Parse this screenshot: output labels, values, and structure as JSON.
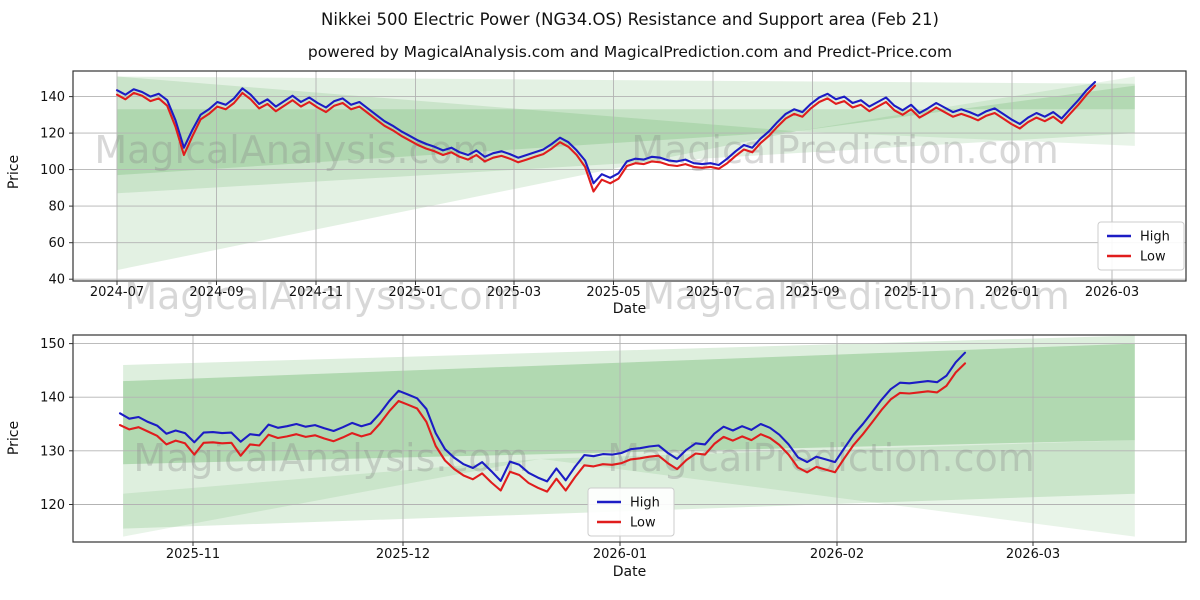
{
  "title": "Nikkei 500 Electric Power (NG34.OS) Resistance and Support area (Feb 21)",
  "subtitle": "powered by MagicalAnalysis.com and MagicalPrediction.com and Predict-Price.com",
  "watermark_row": [
    "MagicalAnalysis.com",
    "MagicalPrediction.com"
  ],
  "colors": {
    "high": "#1c1cc4",
    "low": "#e01d1d",
    "band_green": "#008000",
    "grid": "#b3b3b3",
    "spine": "#333333"
  },
  "chart_data": [
    {
      "type": "line",
      "panel": "top",
      "xlabel": "Date",
      "ylabel": "Price",
      "x_tick_labels": [
        "2024-07",
        "2024-09",
        "2024-11",
        "2025-01",
        "2025-03",
        "2025-05",
        "2025-07",
        "2025-09",
        "2025-11",
        "2026-01",
        "2026-03"
      ],
      "y_ticks": [
        40,
        60,
        80,
        100,
        120,
        140
      ],
      "ylim": [
        39,
        154
      ],
      "grid": true,
      "legend_position": "center-right",
      "watermarks": [
        "MagicalAnalysis.com",
        "MagicalPrediction.com"
      ],
      "series": [
        {
          "name": "High",
          "color": "#1c1cc4",
          "values": [
            143.5,
            141.0,
            144.0,
            142.5,
            140.0,
            141.5,
            138.0,
            127.0,
            112.0,
            121.5,
            130.0,
            133.0,
            137.0,
            135.5,
            139.0,
            144.5,
            141.0,
            136.0,
            138.5,
            134.5,
            137.5,
            140.5,
            137.0,
            139.5,
            136.5,
            134.0,
            137.5,
            139.0,
            135.5,
            137.0,
            133.5,
            130.0,
            126.5,
            124.0,
            121.0,
            118.5,
            116.0,
            114.0,
            112.5,
            110.5,
            112.0,
            109.5,
            108.0,
            110.5,
            107.0,
            109.0,
            110.0,
            108.5,
            106.5,
            108.0,
            109.5,
            111.0,
            114.0,
            117.5,
            115.0,
            110.5,
            105.0,
            92.5,
            97.5,
            95.5,
            98.0,
            104.5,
            106.0,
            105.5,
            107.0,
            106.5,
            105.0,
            104.5,
            105.5,
            103.5,
            103.0,
            103.5,
            102.5,
            106.0,
            110.0,
            113.5,
            112.0,
            117.0,
            121.0,
            126.0,
            130.5,
            133.0,
            131.5,
            136.0,
            139.5,
            141.5,
            138.5,
            140.0,
            136.5,
            138.0,
            134.5,
            137.0,
            139.5,
            135.0,
            132.5,
            135.5,
            131.0,
            133.5,
            136.5,
            134.0,
            131.5,
            133.0,
            131.5,
            129.5,
            132.0,
            133.5,
            130.5,
            127.5,
            125.0,
            128.5,
            131.0,
            129.0,
            131.5,
            128.0,
            133.0,
            138.0,
            143.5,
            148.0
          ]
        },
        {
          "name": "Low",
          "color": "#e01d1d",
          "values": [
            141.0,
            138.5,
            142.0,
            140.5,
            137.5,
            139.0,
            135.0,
            123.5,
            108.0,
            118.0,
            127.5,
            130.5,
            134.5,
            133.0,
            136.5,
            142.0,
            138.5,
            133.5,
            136.0,
            132.0,
            135.0,
            138.0,
            134.5,
            137.0,
            134.0,
            131.5,
            135.0,
            136.5,
            133.0,
            134.5,
            131.0,
            127.5,
            124.0,
            121.5,
            118.5,
            116.0,
            113.5,
            111.5,
            110.0,
            108.0,
            109.5,
            107.0,
            105.5,
            108.0,
            104.5,
            106.5,
            107.5,
            106.0,
            104.0,
            105.5,
            107.0,
            108.5,
            111.5,
            115.0,
            112.5,
            108.0,
            101.5,
            88.0,
            94.5,
            92.5,
            95.0,
            102.0,
            103.5,
            103.0,
            104.5,
            104.0,
            102.5,
            102.0,
            103.0,
            101.5,
            101.0,
            101.5,
            100.5,
            103.5,
            107.5,
            111.0,
            109.5,
            114.5,
            118.5,
            123.5,
            128.0,
            130.5,
            129.0,
            133.5,
            137.0,
            139.0,
            136.0,
            137.5,
            134.0,
            135.5,
            132.0,
            134.5,
            137.0,
            132.5,
            130.0,
            133.0,
            128.5,
            131.0,
            134.0,
            131.5,
            129.0,
            130.5,
            129.0,
            127.0,
            129.5,
            131.0,
            128.0,
            125.0,
            122.5,
            126.0,
            128.5,
            126.5,
            129.0,
            125.5,
            130.5,
            135.5,
            141.0,
            146.0
          ]
        }
      ],
      "support_resistance_bands": [
        {
          "opacity": 0.11,
          "points": [
            [
              0.04,
              151
            ],
            [
              0.04,
              45
            ],
            [
              0.65,
              121
            ]
          ]
        },
        {
          "opacity": 0.11,
          "points": [
            [
              0.04,
              151
            ],
            [
              0.954,
              147
            ],
            [
              0.954,
              120
            ],
            [
              0.04,
              87
            ]
          ]
        },
        {
          "opacity": 0.13,
          "points": [
            [
              0.04,
              133
            ],
            [
              0.04,
              97
            ],
            [
              0.65,
              121
            ],
            [
              0.954,
              146
            ],
            [
              0.954,
              133
            ]
          ]
        },
        {
          "opacity": 0.09,
          "points": [
            [
              0.65,
              121
            ],
            [
              0.954,
              151
            ],
            [
              0.954,
              113
            ]
          ]
        }
      ]
    },
    {
      "type": "line",
      "panel": "bottom",
      "xlabel": "Date",
      "ylabel": "Price",
      "x_tick_labels": [
        "2025-11",
        "2025-12",
        "2026-01",
        "2026-02",
        "2026-03"
      ],
      "y_ticks": [
        120,
        130,
        140,
        150
      ],
      "ylim": [
        113,
        151.6
      ],
      "grid": true,
      "legend_position": "bottom-center",
      "watermarks": [
        "MagicalAnalysis.com",
        "MagicalPrediction.com"
      ],
      "series": [
        {
          "name": "High",
          "color": "#1c1cc4",
          "values": [
            137.0,
            136.0,
            136.3,
            135.4,
            134.7,
            133.2,
            133.8,
            133.3,
            131.6,
            133.4,
            133.5,
            133.3,
            133.4,
            131.7,
            133.1,
            132.9,
            134.9,
            134.3,
            134.6,
            135.0,
            134.5,
            134.8,
            134.2,
            133.7,
            134.4,
            135.2,
            134.6,
            135.1,
            137.0,
            139.3,
            141.2,
            140.5,
            139.8,
            137.8,
            133.3,
            130.3,
            128.7,
            127.5,
            126.8,
            127.9,
            126.2,
            124.4,
            128.0,
            127.4,
            125.9,
            125.0,
            124.3,
            126.7,
            124.5,
            127.0,
            129.2,
            129.0,
            129.4,
            129.3,
            129.6,
            130.3,
            130.5,
            130.8,
            131.0,
            129.6,
            128.5,
            130.2,
            131.4,
            131.2,
            133.2,
            134.5,
            133.8,
            134.6,
            133.9,
            135.0,
            134.3,
            133.0,
            131.2,
            128.8,
            127.9,
            128.9,
            128.4,
            127.9,
            130.5,
            133.0,
            135.0,
            137.2,
            139.5,
            141.5,
            142.7,
            142.6,
            142.8,
            143.0,
            142.8,
            144.0,
            146.5,
            148.3
          ]
        },
        {
          "name": "Low",
          "color": "#e01d1d",
          "values": [
            134.8,
            134.0,
            134.4,
            133.6,
            132.8,
            131.2,
            131.9,
            131.4,
            129.3,
            131.5,
            131.6,
            131.4,
            131.5,
            129.1,
            131.2,
            131.0,
            133.0,
            132.4,
            132.7,
            133.1,
            132.6,
            132.9,
            132.3,
            131.8,
            132.5,
            133.3,
            132.7,
            133.2,
            135.1,
            137.4,
            139.3,
            138.6,
            137.9,
            135.4,
            130.9,
            128.2,
            126.6,
            125.4,
            124.7,
            125.8,
            124.1,
            122.6,
            126.1,
            125.5,
            124.0,
            123.1,
            122.4,
            124.8,
            122.6,
            125.1,
            127.3,
            127.1,
            127.5,
            127.4,
            127.7,
            128.4,
            128.6,
            128.9,
            129.1,
            127.7,
            126.6,
            128.3,
            129.5,
            129.3,
            131.3,
            132.6,
            131.9,
            132.7,
            132.0,
            133.1,
            132.4,
            131.1,
            129.3,
            126.9,
            126.0,
            127.0,
            126.5,
            126.0,
            128.6,
            131.1,
            133.1,
            135.3,
            137.6,
            139.6,
            140.8,
            140.7,
            140.9,
            141.1,
            140.9,
            142.1,
            144.6,
            146.3
          ]
        }
      ],
      "support_resistance_bands": [
        {
          "opacity": 0.13,
          "points": [
            [
              0.045,
              146
            ],
            [
              0.954,
              151.5
            ],
            [
              0.954,
              122
            ],
            [
              0.045,
              115.5
            ]
          ]
        },
        {
          "opacity": 0.2,
          "points": [
            [
              0.045,
              143
            ],
            [
              0.954,
              150
            ],
            [
              0.954,
              132
            ],
            [
              0.045,
              127.5
            ]
          ]
        },
        {
          "opacity": 0.09,
          "points": [
            [
              0.045,
              122
            ],
            [
              0.045,
              114
            ],
            [
              0.42,
              128.5
            ]
          ]
        },
        {
          "opacity": 0.09,
          "points": [
            [
              0.42,
              128.5
            ],
            [
              0.954,
              132
            ],
            [
              0.954,
              114
            ]
          ]
        }
      ]
    }
  ]
}
